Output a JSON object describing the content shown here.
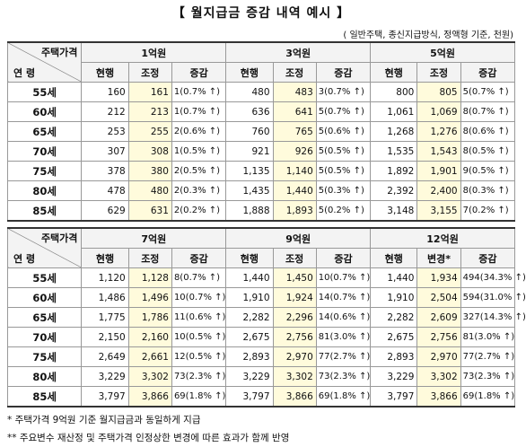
{
  "title": "【 월지급금 증감 내역 예시 】",
  "subtitle": "( 일반주택, 종신지급방식, 정액형 기준, 천원)",
  "tables": [
    {
      "corner_top": "주택가격",
      "corner_bottom": "연 령",
      "groups": [
        {
          "name": "1억원",
          "columns": [
            "현행",
            "조정",
            "증감"
          ]
        },
        {
          "name": "3억원",
          "columns": [
            "현행",
            "조정",
            "증감"
          ]
        },
        {
          "name": "5억원",
          "columns": [
            "현행",
            "조정",
            "증감"
          ]
        }
      ],
      "rows": [
        {
          "age": "55세",
          "cells": [
            "160",
            "161",
            "1(0.7% ↑)",
            "480",
            "483",
            "3(0.7% ↑)",
            "800",
            "805",
            "5(0.7% ↑)"
          ]
        },
        {
          "age": "60세",
          "cells": [
            "212",
            "213",
            "1(0.7% ↑)",
            "636",
            "641",
            "5(0.7% ↑)",
            "1,061",
            "1,069",
            "8(0.7% ↑)"
          ]
        },
        {
          "age": "65세",
          "cells": [
            "253",
            "255",
            "2(0.6% ↑)",
            "760",
            "765",
            "5(0.6% ↑)",
            "1,268",
            "1,276",
            "8(0.6% ↑)"
          ]
        },
        {
          "age": "70세",
          "cells": [
            "307",
            "308",
            "1(0.5% ↑)",
            "921",
            "926",
            "5(0.5% ↑)",
            "1,535",
            "1,543",
            "8(0.5% ↑)"
          ]
        },
        {
          "age": "75세",
          "cells": [
            "378",
            "380",
            "2(0.5% ↑)",
            "1,135",
            "1,140",
            "5(0.5% ↑)",
            "1,892",
            "1,901",
            "9(0.5% ↑)"
          ]
        },
        {
          "age": "80세",
          "cells": [
            "478",
            "480",
            "2(0.3% ↑)",
            "1,435",
            "1,440",
            "5(0.3% ↑)",
            "2,392",
            "2,400",
            "8(0.3% ↑)"
          ]
        },
        {
          "age": "85세",
          "cells": [
            "629",
            "631",
            "2(0.2% ↑)",
            "1,888",
            "1,893",
            "5(0.2% ↑)",
            "3,148",
            "3,155",
            "7(0.2% ↑)"
          ]
        }
      ]
    },
    {
      "corner_top": "주택가격",
      "corner_bottom": "연 령",
      "groups": [
        {
          "name": "7억원",
          "columns": [
            "현행",
            "조정",
            "증감"
          ]
        },
        {
          "name": "9억원",
          "columns": [
            "현행",
            "조정",
            "증감"
          ]
        },
        {
          "name": "12억원",
          "columns": [
            "현행",
            "변경*",
            "증감"
          ]
        }
      ],
      "rows": [
        {
          "age": "55세",
          "cells": [
            "1,120",
            "1,128",
            "8(0.7% ↑)",
            "1,440",
            "1,450",
            "10(0.7% ↑)",
            "1,440",
            "1,934",
            "494(34.3% ↑)"
          ]
        },
        {
          "age": "60세",
          "cells": [
            "1,486",
            "1,496",
            "10(0.7% ↑)",
            "1,910",
            "1,924",
            "14(0.7% ↑)",
            "1,910",
            "2,504",
            "594(31.0% ↑)"
          ]
        },
        {
          "age": "65세",
          "cells": [
            "1,775",
            "1,786",
            "11(0.6% ↑)",
            "2,282",
            "2,296",
            "14(0.6% ↑)",
            "2,282",
            "2,609",
            "327(14.3% ↑)"
          ]
        },
        {
          "age": "70세",
          "cells": [
            "2,150",
            "2,160",
            "10(0.5% ↑)",
            "2,675",
            "2,756",
            "81(3.0% ↑)",
            "2,675",
            "2,756",
            "81(3.0% ↑)"
          ]
        },
        {
          "age": "75세",
          "cells": [
            "2,649",
            "2,661",
            "12(0.5% ↑)",
            "2,893",
            "2,970",
            "77(2.7% ↑)",
            "2,893",
            "2,970",
            "77(2.7% ↑)"
          ]
        },
        {
          "age": "80세",
          "cells": [
            "3,229",
            "3,302",
            "73(2.3% ↑)",
            "3,229",
            "3,302",
            "73(2.3% ↑)",
            "3,229",
            "3,302",
            "73(2.3% ↑)"
          ]
        },
        {
          "age": "85세",
          "cells": [
            "3,797",
            "3,866",
            "69(1.8% ↑)",
            "3,797",
            "3,866",
            "69(1.8% ↑)",
            "3,797",
            "3,866",
            "69(1.8% ↑)"
          ]
        }
      ]
    }
  ],
  "notes": [
    "* 주택가격 9억원 기준 월지급금과 동일하게 지급",
    "** 주요변수 재산정 및 주택가격 인정상한 변경에 따른 효과가 함께 반영"
  ]
}
